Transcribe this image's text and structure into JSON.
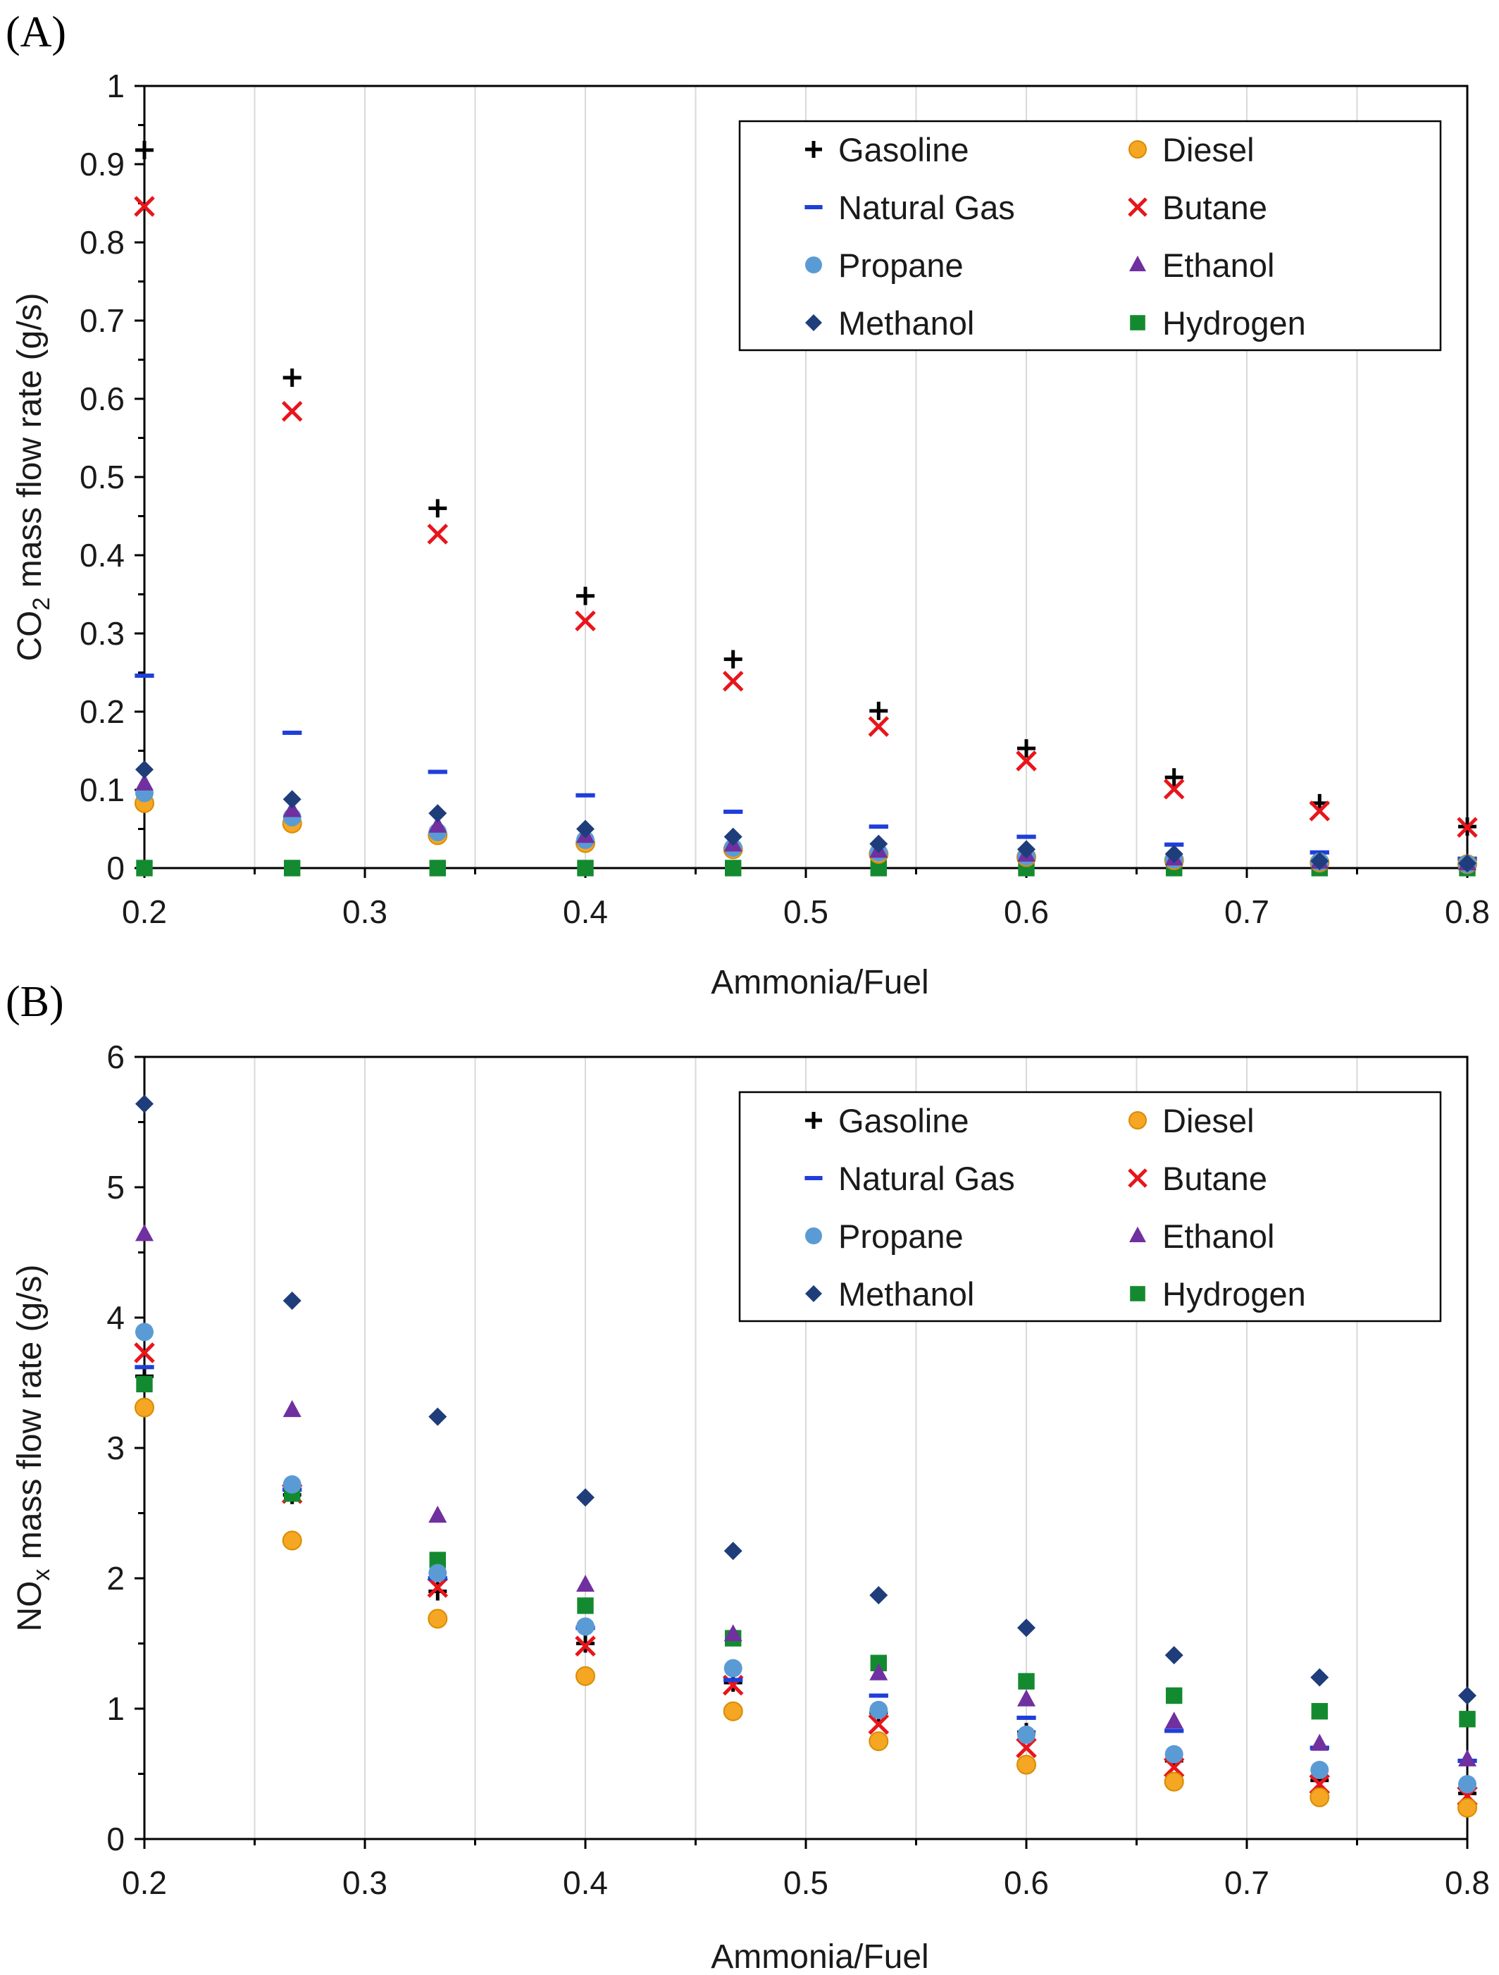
{
  "style": {
    "series_colors": {
      "Gasoline": "#000000",
      "Diesel": "#F5A623",
      "Natural Gas": "#1F3FD9",
      "Butane": "#E8151B",
      "Propane": "#5B9BD5",
      "Ethanol": "#7030A0",
      "Methanol": "#1F3D7A",
      "Hydrogen": "#138A2F"
    },
    "diesel_edge": "#D98C00",
    "markers": {
      "Gasoline": "plus",
      "Diesel": "circle",
      "Natural Gas": "dash",
      "Butane": "x",
      "Propane": "circle",
      "Ethanol": "triangle",
      "Methanol": "diamond",
      "Hydrogen": "square"
    }
  },
  "chart_data": [
    {
      "type": "scatter",
      "panel_label": "(A)",
      "title": "",
      "xlabel": "Ammonia/Fuel",
      "ylabel_main": "CO",
      "ylabel_sub": "2",
      "ylabel_rest": " mass flow rate (g/s)",
      "xlim": [
        0.2,
        0.8
      ],
      "ylim": [
        0,
        1
      ],
      "x_ticks": [
        "0.2",
        "0.3",
        "0.4",
        "0.5",
        "0.6",
        "0.7",
        "0.8"
      ],
      "y_ticks": [
        "0",
        "0.1",
        "0.2",
        "0.3",
        "0.4",
        "0.5",
        "0.6",
        "0.7",
        "0.8",
        "0.9",
        "1"
      ],
      "grid": "vertical",
      "legend_position": "top-right",
      "legend": [
        "Gasoline",
        "Diesel",
        "Natural Gas",
        "Butane",
        "Propane",
        "Ethanol",
        "Methanol",
        "Hydrogen"
      ],
      "x": [
        0.2,
        0.267,
        0.333,
        0.4,
        0.467,
        0.533,
        0.6,
        0.667,
        0.733,
        0.8
      ],
      "series": [
        {
          "name": "Gasoline",
          "values": [
            0.918,
            0.627,
            0.46,
            0.348,
            0.267,
            0.201,
            0.153,
            0.116,
            0.083,
            0.053
          ]
        },
        {
          "name": "Diesel",
          "values": [
            0.083,
            0.057,
            0.042,
            0.032,
            0.024,
            0.018,
            0.014,
            0.01,
            0.007,
            0.005
          ]
        },
        {
          "name": "Natural Gas",
          "values": [
            0.246,
            0.173,
            0.123,
            0.093,
            0.072,
            0.053,
            0.04,
            0.03,
            0.02,
            0.012
          ]
        },
        {
          "name": "Butane",
          "values": [
            0.846,
            0.584,
            0.427,
            0.316,
            0.239,
            0.181,
            0.137,
            0.101,
            0.073,
            0.052
          ]
        },
        {
          "name": "Propane",
          "values": [
            0.096,
            0.065,
            0.046,
            0.036,
            0.026,
            0.02,
            0.015,
            0.011,
            0.008,
            0.005
          ]
        },
        {
          "name": "Ethanol",
          "values": [
            0.108,
            0.074,
            0.054,
            0.041,
            0.03,
            0.022,
            0.017,
            0.012,
            0.008,
            0.006
          ]
        },
        {
          "name": "Methanol",
          "values": [
            0.126,
            0.088,
            0.07,
            0.05,
            0.04,
            0.031,
            0.024,
            0.018,
            0.009,
            0.006
          ]
        },
        {
          "name": "Hydrogen",
          "values": [
            0.0,
            0.0,
            0.0,
            0.0,
            0.0,
            0.0,
            0.0,
            0.0,
            0.0,
            0.0
          ]
        }
      ]
    },
    {
      "type": "scatter",
      "panel_label": "(B)",
      "title": "",
      "xlabel": "Ammonia/Fuel",
      "ylabel_main": "NO",
      "ylabel_sub": "x",
      "ylabel_rest": " mass flow rate (g/s)",
      "xlim": [
        0.2,
        0.8
      ],
      "ylim": [
        0,
        6
      ],
      "x_ticks": [
        "0.2",
        "0.3",
        "0.4",
        "0.5",
        "0.6",
        "0.7",
        "0.8"
      ],
      "y_ticks": [
        "0",
        "1",
        "2",
        "3",
        "4",
        "5",
        "6"
      ],
      "grid": "vertical",
      "legend_position": "top-right",
      "legend": [
        "Gasoline",
        "Diesel",
        "Natural Gas",
        "Butane",
        "Propane",
        "Ethanol",
        "Methanol",
        "Hydrogen"
      ],
      "x": [
        0.2,
        0.267,
        0.333,
        0.4,
        0.467,
        0.533,
        0.6,
        0.667,
        0.733,
        0.8
      ],
      "series": [
        {
          "name": "Gasoline",
          "values": [
            3.55,
            2.64,
            1.9,
            1.5,
            1.2,
            0.97,
            0.82,
            0.6,
            0.45,
            0.35
          ]
        },
        {
          "name": "Diesel",
          "values": [
            3.31,
            2.29,
            1.69,
            1.25,
            0.98,
            0.75,
            0.57,
            0.44,
            0.32,
            0.24
          ]
        },
        {
          "name": "Natural Gas",
          "values": [
            3.62,
            2.68,
            2.0,
            1.62,
            1.22,
            1.1,
            0.93,
            0.83,
            0.7,
            0.6
          ]
        },
        {
          "name": "Butane",
          "values": [
            3.73,
            2.65,
            1.93,
            1.48,
            1.18,
            0.88,
            0.7,
            0.55,
            0.42,
            0.33
          ]
        },
        {
          "name": "Propane",
          "values": [
            3.89,
            2.72,
            2.04,
            1.63,
            1.31,
            0.99,
            0.8,
            0.65,
            0.53,
            0.42
          ]
        },
        {
          "name": "Ethanol",
          "values": [
            4.64,
            3.29,
            2.48,
            1.95,
            1.57,
            1.27,
            1.07,
            0.9,
            0.73,
            0.61
          ]
        },
        {
          "name": "Methanol",
          "values": [
            5.64,
            4.13,
            3.24,
            2.62,
            2.21,
            1.87,
            1.62,
            1.41,
            1.24,
            1.1
          ]
        },
        {
          "name": "Hydrogen",
          "values": [
            3.49,
            2.65,
            2.14,
            1.79,
            1.54,
            1.35,
            1.21,
            1.1,
            0.98,
            0.92
          ]
        }
      ]
    }
  ]
}
